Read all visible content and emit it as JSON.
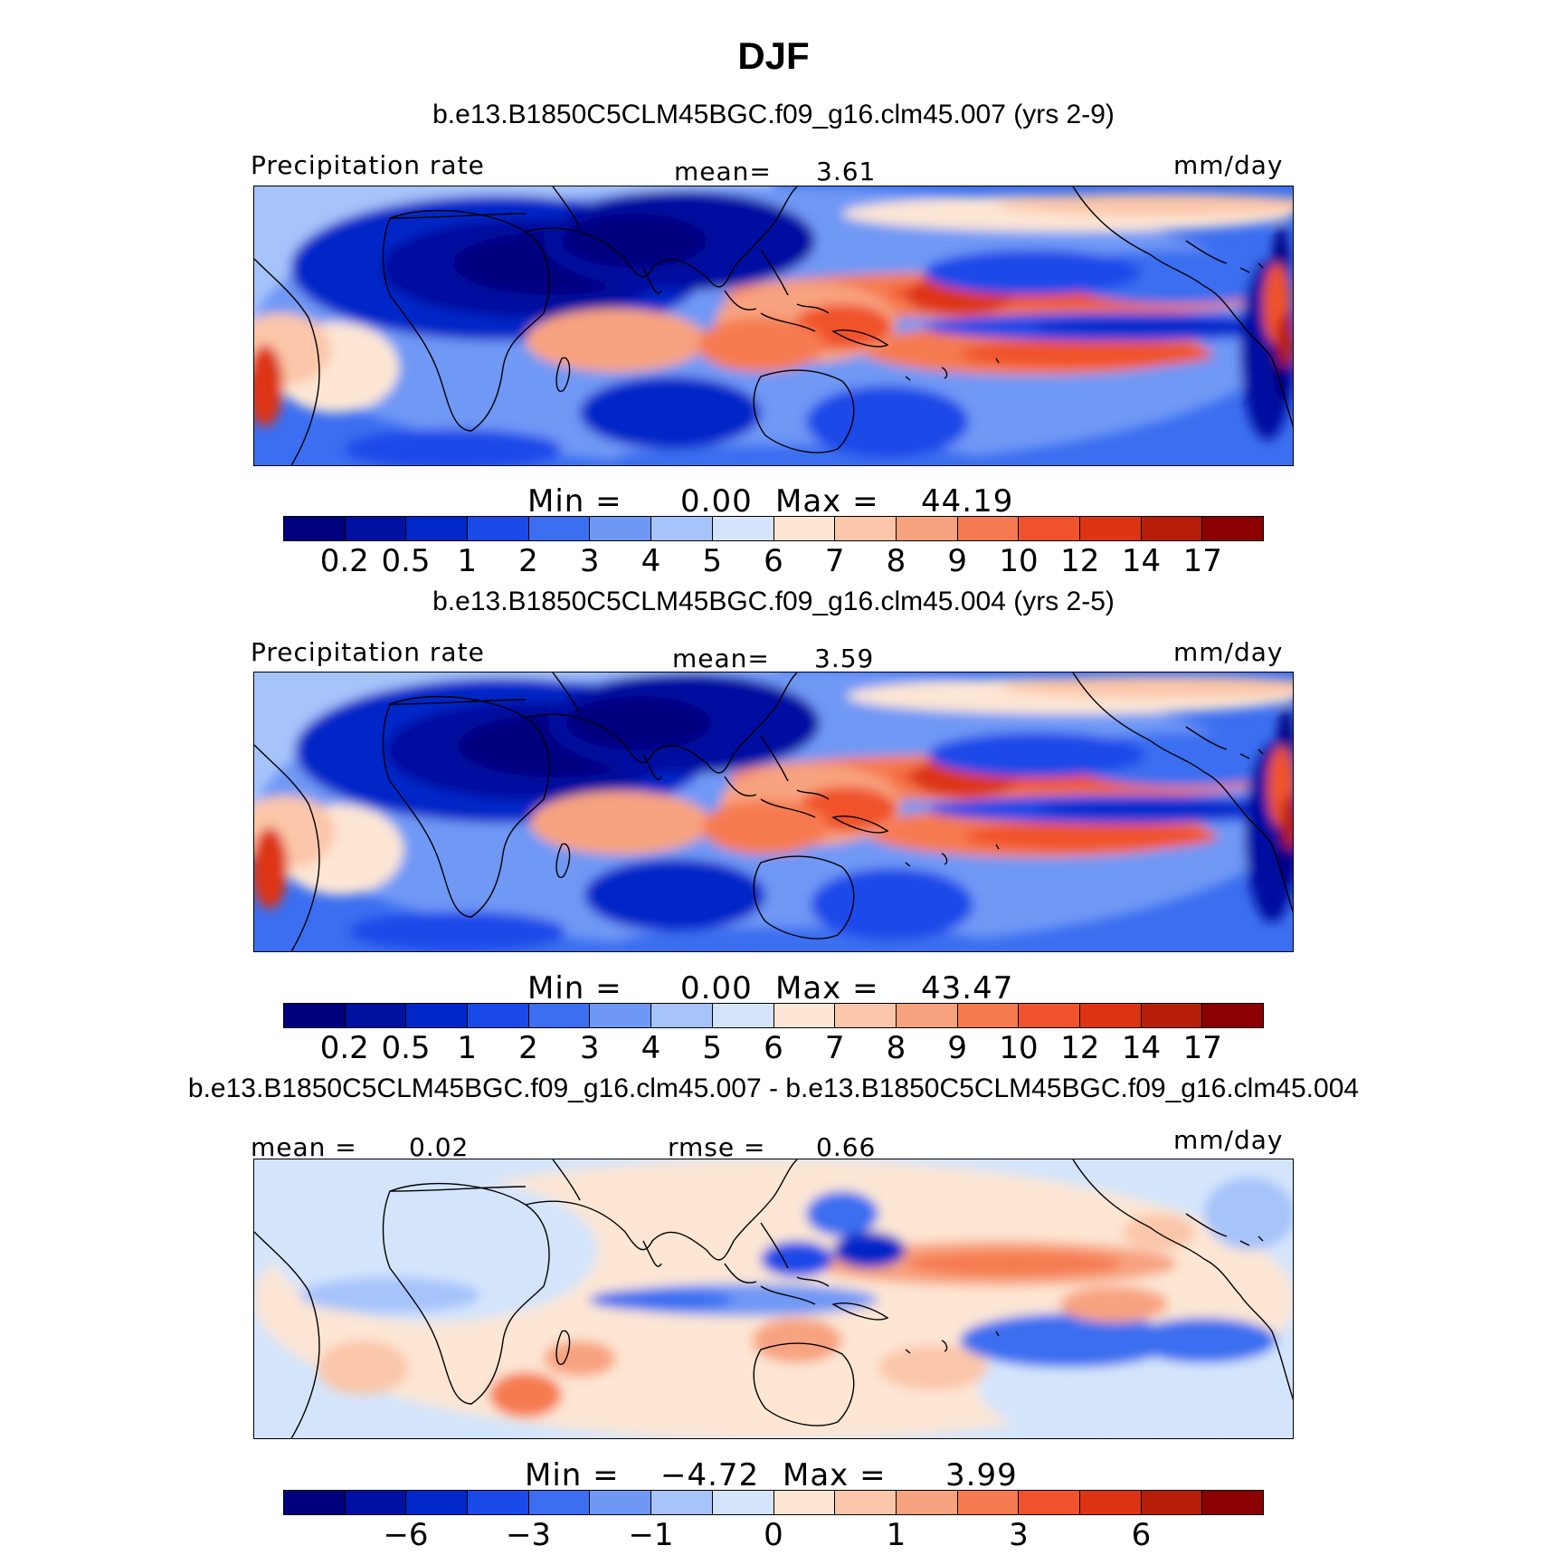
{
  "title": "DJF",
  "colors": [
    "#00007f",
    "#0011a1",
    "#0028c8",
    "#1a4ae8",
    "#3b6ef0",
    "#6f98f5",
    "#a6c3fa",
    "#d4e5fb",
    "#fde6d4",
    "#fbc6a9",
    "#f8a37f",
    "#f67a4f",
    "#f0532b",
    "#dd3414",
    "#b71e09",
    "#8b0000"
  ],
  "panels": [
    {
      "title": "b.e13.B1850C5CLM45BGC.f09_g16.clm45.007 (yrs 2-9)",
      "left_label": "Precipitation  rate",
      "center_label": "mean=",
      "center_value": "3.61",
      "units": "mm/day",
      "min_label": "Min  =",
      "min_value": "0.00",
      "max_label": "Max  =",
      "max_value": "44.19",
      "levels": [
        "0.2",
        "0.5",
        "1",
        "2",
        "3",
        "4",
        "5",
        "6",
        "7",
        "8",
        "9",
        "10",
        "12",
        "14",
        "17"
      ],
      "type": "precip"
    },
    {
      "title": "b.e13.B1850C5CLM45BGC.f09_g16.clm45.004 (yrs 2-5)",
      "left_label": "Precipitation  rate",
      "center_label": "mean=",
      "center_value": "3.59",
      "units": "mm/day",
      "min_label": "Min  =",
      "min_value": "0.00",
      "max_label": "Max  =",
      "max_value": "43.47",
      "levels": [
        "0.2",
        "0.5",
        "1",
        "2",
        "3",
        "4",
        "5",
        "6",
        "7",
        "8",
        "9",
        "10",
        "12",
        "14",
        "17"
      ],
      "type": "precip"
    },
    {
      "title": "b.e13.B1850C5CLM45BGC.f09_g16.clm45.007 - b.e13.B1850C5CLM45BGC.f09_g16.clm45.004",
      "left_label": "mean  =",
      "left_value": "0.02",
      "center_label": "rmse  =",
      "center_value": "0.66",
      "units": "mm/day",
      "min_label": "Min  =",
      "min_value": "−4.72",
      "max_label": "Max  =",
      "max_value": "3.99",
      "levels": [
        "−6",
        "−3",
        "−1",
        "0",
        "1",
        "3",
        "6"
      ],
      "type": "diff"
    }
  ],
  "chart_data": [
    {
      "type": "heatmap",
      "title": "DJF",
      "subtitle": "b.e13.B1850C5CLM45BGC.f09_g16.clm45.007 (yrs 2-9)",
      "variable": "Precipitation rate",
      "units": "mm/day",
      "mean": 3.61,
      "min": 0.0,
      "max": 44.19,
      "contour_levels": [
        0.2,
        0.5,
        1,
        2,
        3,
        4,
        5,
        6,
        7,
        8,
        9,
        10,
        12,
        14,
        17
      ]
    },
    {
      "type": "heatmap",
      "title": "DJF",
      "subtitle": "b.e13.B1850C5CLM45BGC.f09_g16.clm45.004 (yrs 2-5)",
      "variable": "Precipitation rate",
      "units": "mm/day",
      "mean": 3.59,
      "min": 0.0,
      "max": 43.47,
      "contour_levels": [
        0.2,
        0.5,
        1,
        2,
        3,
        4,
        5,
        6,
        7,
        8,
        9,
        10,
        12,
        14,
        17
      ]
    },
    {
      "type": "heatmap",
      "title": "DJF",
      "subtitle": "b.e13.B1850C5CLM45BGC.f09_g16.clm45.007 - b.e13.B1850C5CLM45BGC.f09_g16.clm45.004",
      "units": "mm/day",
      "mean": 0.02,
      "rmse": 0.66,
      "min": -4.72,
      "max": 3.99,
      "contour_levels": [
        -6,
        -3,
        -1,
        0,
        1,
        3,
        6
      ]
    }
  ]
}
